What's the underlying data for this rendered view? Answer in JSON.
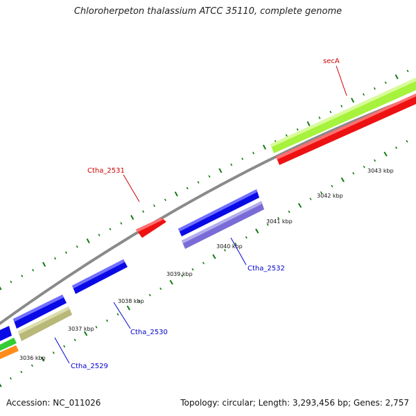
{
  "title": "Chloroherpeton thalassium ATCC 35110, complete genome",
  "footer": {
    "accession": "Accession: NC_011026",
    "summary": "Topology: circular; Length: 3,293,456 bp; Genes: 2,757"
  },
  "colors": {
    "backbone": "#8a8a8a",
    "tick": "#117a11",
    "forward_label": "#cc0000",
    "reverse_label": "#0000cc"
  },
  "kbp_labels": [
    "3036 kbp",
    "3037 kbp",
    "3038 kbp",
    "3039 kbp",
    "3040 kbp",
    "3041 kbp",
    "3042 kbp",
    "3043 kbp"
  ],
  "gene_labels": [
    {
      "name": "secA",
      "color": "#cc0000"
    },
    {
      "name": "Ctha_2531",
      "color": "#cc0000"
    },
    {
      "name": "Ctha_2532",
      "color": "#0000cc"
    },
    {
      "name": "Ctha_2530",
      "color": "#0000cc"
    },
    {
      "name": "Ctha_2529",
      "color": "#0000cc"
    }
  ],
  "features": [
    {
      "name": "secA-lime-band",
      "color": "#a6f23c"
    },
    {
      "name": "secA-red-band",
      "color": "#ee1111"
    },
    {
      "name": "ctha2531-red",
      "color": "#ee1111"
    },
    {
      "name": "ctha2532-blue",
      "color": "#0a0ae6"
    },
    {
      "name": "ctha2532-purple",
      "color": "#7a6cd6"
    },
    {
      "name": "ctha2530-blue",
      "color": "#0a0ae6"
    },
    {
      "name": "ctha2530-blue-2",
      "color": "#0a0ae6"
    },
    {
      "name": "ctha2529-blue",
      "color": "#0a0ae6"
    },
    {
      "name": "ctha2529-khaki",
      "color": "#b8b878"
    },
    {
      "name": "edge-blue",
      "color": "#0a0ae6"
    },
    {
      "name": "edge-green",
      "color": "#33cc33"
    },
    {
      "name": "edge-orange",
      "color": "#ff8c1a"
    }
  ]
}
